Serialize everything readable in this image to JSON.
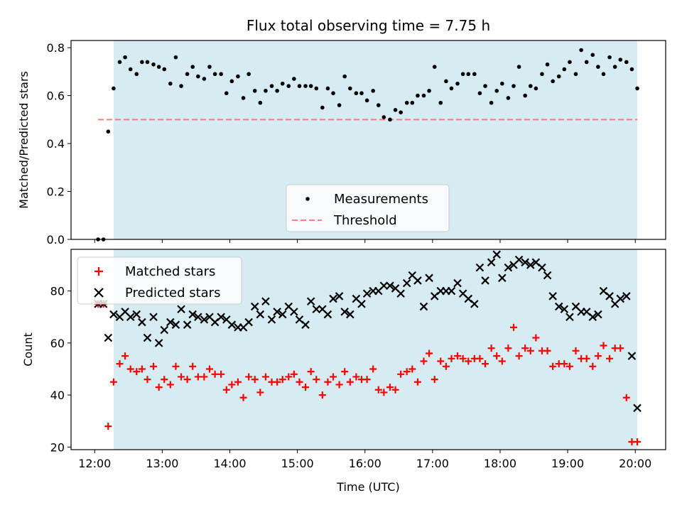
{
  "chart_data": [
    {
      "type": "scatter",
      "title": "Flux total observing time = 7.75 h",
      "xlabel": "",
      "ylabel": "Matched/Predicted stars",
      "ylim": [
        0,
        0.83
      ],
      "yticks": [
        "0.0",
        "0.2",
        "0.4",
        "0.6",
        "0.8"
      ],
      "ytick_values": [
        0,
        0.2,
        0.4,
        0.6,
        0.8
      ],
      "shaded_interval_hours": [
        12.28,
        20.03
      ],
      "legend": {
        "placement": "lower-center"
      },
      "threshold": {
        "name": "Threshold",
        "value": 0.5,
        "x_range_hours": [
          12.05,
          20.03
        ],
        "color": "#f08080"
      },
      "series": [
        {
          "name": "Measurements",
          "marker": "dot",
          "color": "#000000",
          "x": [
            12.05,
            12.13,
            12.2,
            12.28,
            12.37,
            12.45,
            12.53,
            12.62,
            12.7,
            12.78,
            12.87,
            12.95,
            13.03,
            13.12,
            13.2,
            13.28,
            13.37,
            13.45,
            13.53,
            13.62,
            13.7,
            13.78,
            13.87,
            13.95,
            14.03,
            14.12,
            14.2,
            14.28,
            14.37,
            14.45,
            14.53,
            14.62,
            14.7,
            14.78,
            14.87,
            14.95,
            15.03,
            15.12,
            15.2,
            15.28,
            15.37,
            15.45,
            15.53,
            15.62,
            15.7,
            15.78,
            15.87,
            15.95,
            16.03,
            16.12,
            16.2,
            16.28,
            16.37,
            16.45,
            16.53,
            16.62,
            16.7,
            16.78,
            16.87,
            16.95,
            17.03,
            17.12,
            17.2,
            17.28,
            17.37,
            17.45,
            17.53,
            17.62,
            17.7,
            17.78,
            17.87,
            17.95,
            18.03,
            18.12,
            18.2,
            18.28,
            18.37,
            18.45,
            18.53,
            18.62,
            18.7,
            18.78,
            18.87,
            18.95,
            19.03,
            19.12,
            19.2,
            19.28,
            19.37,
            19.45,
            19.53,
            19.62,
            19.7,
            19.78,
            19.87,
            19.95,
            20.03
          ],
          "y": [
            0.0,
            0.0,
            0.45,
            0.63,
            0.74,
            0.76,
            0.71,
            0.69,
            0.74,
            0.74,
            0.73,
            0.72,
            0.71,
            0.65,
            0.76,
            0.64,
            0.69,
            0.72,
            0.68,
            0.67,
            0.72,
            0.69,
            0.69,
            0.61,
            0.66,
            0.68,
            0.59,
            0.69,
            0.62,
            0.57,
            0.62,
            0.64,
            0.62,
            0.65,
            0.64,
            0.67,
            0.64,
            0.64,
            0.64,
            0.63,
            0.55,
            0.63,
            0.61,
            0.56,
            0.68,
            0.63,
            0.61,
            0.61,
            0.58,
            0.62,
            0.56,
            0.51,
            0.5,
            0.54,
            0.53,
            0.57,
            0.57,
            0.6,
            0.6,
            0.62,
            0.72,
            0.57,
            0.66,
            0.63,
            0.65,
            0.69,
            0.69,
            0.69,
            0.61,
            0.64,
            0.57,
            0.62,
            0.65,
            0.59,
            0.64,
            0.72,
            0.6,
            0.64,
            0.63,
            0.69,
            0.73,
            0.66,
            0.68,
            0.71,
            0.74,
            0.69,
            0.79,
            0.74,
            0.77,
            0.72,
            0.69,
            0.76,
            0.72,
            0.75,
            0.74,
            0.71,
            0.63
          ]
        }
      ]
    },
    {
      "type": "scatter",
      "title": "",
      "xlabel": "Time (UTC)",
      "ylabel": "Count",
      "ylim": [
        19,
        96
      ],
      "yticks": [
        "20",
        "40",
        "60",
        "80"
      ],
      "ytick_values": [
        20,
        40,
        60,
        80
      ],
      "xlim_hours": [
        11.65,
        20.45
      ],
      "xtick_labels": [
        "12:00",
        "13:00",
        "14:00",
        "15:00",
        "16:00",
        "17:00",
        "18:00",
        "19:00",
        "20:00"
      ],
      "xtick_hours": [
        12,
        13,
        14,
        15,
        16,
        17,
        18,
        19,
        20
      ],
      "shaded_interval_hours": [
        12.28,
        20.03
      ],
      "legend": {
        "placement": "upper-left"
      },
      "series": [
        {
          "name": "Matched stars",
          "marker": "plus",
          "color": "#ff0000",
          "x": [
            12.05,
            12.13,
            12.2,
            12.28,
            12.37,
            12.45,
            12.53,
            12.62,
            12.7,
            12.78,
            12.87,
            12.95,
            13.03,
            13.12,
            13.2,
            13.28,
            13.37,
            13.45,
            13.53,
            13.62,
            13.7,
            13.78,
            13.87,
            13.95,
            14.03,
            14.12,
            14.2,
            14.28,
            14.37,
            14.45,
            14.53,
            14.62,
            14.7,
            14.78,
            14.87,
            14.95,
            15.03,
            15.12,
            15.2,
            15.28,
            15.37,
            15.45,
            15.53,
            15.62,
            15.7,
            15.78,
            15.87,
            15.95,
            16.03,
            16.12,
            16.2,
            16.28,
            16.37,
            16.45,
            16.53,
            16.62,
            16.7,
            16.78,
            16.87,
            16.95,
            17.03,
            17.12,
            17.2,
            17.28,
            17.37,
            17.45,
            17.53,
            17.62,
            17.7,
            17.78,
            17.87,
            17.95,
            18.03,
            18.12,
            18.2,
            18.28,
            18.37,
            18.45,
            18.53,
            18.62,
            18.7,
            18.78,
            18.87,
            18.95,
            19.03,
            19.12,
            19.2,
            19.28,
            19.37,
            19.45,
            19.53,
            19.62,
            19.7,
            19.78,
            19.87,
            19.95,
            20.03
          ],
          "y": [
            75,
            75,
            28,
            45,
            52,
            55,
            50,
            49,
            50,
            46,
            51,
            43,
            46,
            44,
            51,
            47,
            46,
            51,
            47,
            47,
            50,
            48,
            48,
            42,
            44,
            45,
            39,
            47,
            46,
            41,
            47,
            45,
            45,
            46,
            47,
            48,
            45,
            43,
            49,
            46,
            40,
            45,
            47,
            44,
            49,
            45,
            47,
            46,
            46,
            50,
            42,
            41,
            43,
            42,
            48,
            49,
            50,
            45,
            53,
            56,
            46,
            53,
            51,
            54,
            55,
            54,
            53,
            54,
            54,
            52,
            58,
            55,
            53,
            58,
            66,
            55,
            58,
            57,
            62,
            57,
            57,
            51,
            52,
            52,
            51,
            57,
            54,
            54,
            51,
            55,
            59,
            54,
            58,
            58,
            39,
            22,
            22
          ],
          "y_note_removed": true
        },
        {
          "name": "Predicted stars",
          "marker": "x",
          "color": "#000000",
          "x": [
            12.05,
            12.13,
            12.2,
            12.28,
            12.37,
            12.45,
            12.53,
            12.62,
            12.7,
            12.78,
            12.87,
            12.95,
            13.03,
            13.12,
            13.2,
            13.28,
            13.37,
            13.45,
            13.53,
            13.62,
            13.7,
            13.78,
            13.87,
            13.95,
            14.03,
            14.12,
            14.2,
            14.28,
            14.37,
            14.45,
            14.53,
            14.62,
            14.7,
            14.78,
            14.87,
            14.95,
            15.03,
            15.12,
            15.2,
            15.28,
            15.37,
            15.45,
            15.53,
            15.62,
            15.7,
            15.78,
            15.87,
            15.95,
            16.03,
            16.12,
            16.2,
            16.28,
            16.37,
            16.45,
            16.53,
            16.62,
            16.7,
            16.78,
            16.87,
            16.95,
            17.03,
            17.12,
            17.2,
            17.28,
            17.37,
            17.45,
            17.53,
            17.62,
            17.7,
            17.78,
            17.87,
            17.95,
            18.03,
            18.12,
            18.2,
            18.28,
            18.37,
            18.45,
            18.53,
            18.62,
            18.7,
            18.78,
            18.87,
            18.95,
            19.03,
            19.12,
            19.2,
            19.28,
            19.37,
            19.45,
            19.53,
            19.62,
            19.7,
            19.78,
            19.87,
            19.95,
            20.03
          ],
          "y": [
            75,
            75,
            62,
            71,
            70,
            72,
            70,
            71,
            68,
            62,
            70,
            60,
            65,
            68,
            67,
            73,
            67,
            71,
            70,
            69,
            70,
            68,
            70,
            69,
            67,
            66,
            66,
            68,
            74,
            71,
            76,
            69,
            72,
            71,
            74,
            72,
            69,
            67,
            76,
            73,
            73,
            71,
            77,
            78,
            72,
            71,
            77,
            75,
            79,
            80,
            80,
            82,
            82,
            81,
            79,
            83,
            86,
            84,
            74,
            85,
            78,
            80,
            80,
            80,
            83,
            79,
            77,
            75,
            89,
            84,
            91,
            94,
            85,
            89,
            90,
            92,
            91,
            90,
            91,
            89,
            86,
            78,
            74,
            73,
            70,
            74,
            72,
            72,
            70,
            71,
            80,
            78,
            75,
            77,
            78,
            55,
            35
          ]
        }
      ]
    }
  ]
}
